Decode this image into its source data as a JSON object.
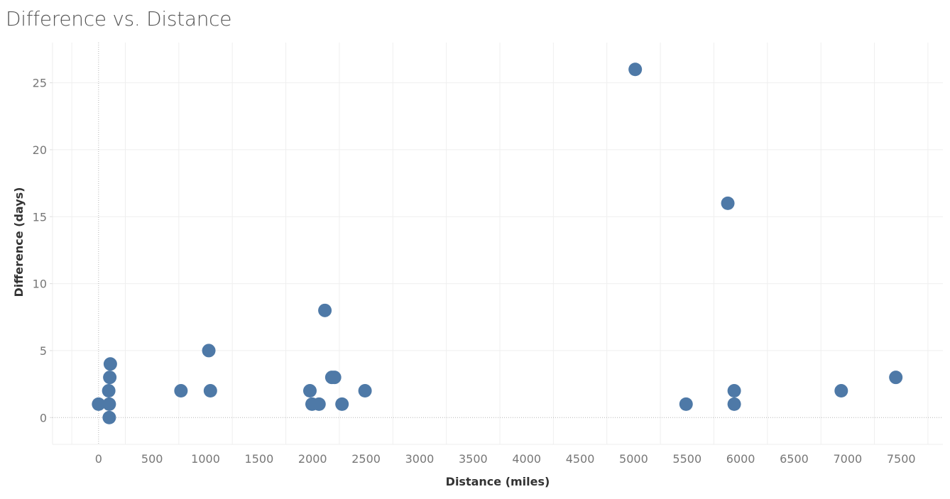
{
  "chart_data": {
    "type": "scatter",
    "title": "Difference vs. Distance",
    "xlabel": "Distance (miles)",
    "ylabel": "Difference (days)",
    "xlim": [
      -430,
      7890
    ],
    "ylim": [
      -2,
      28
    ],
    "xticks": [
      0,
      500,
      1000,
      1500,
      2000,
      2500,
      3000,
      3500,
      4000,
      4500,
      5000,
      5500,
      6000,
      6500,
      7000,
      7500
    ],
    "yticks": [
      0,
      5,
      10,
      15,
      20,
      25
    ],
    "grid": true,
    "legend": "none",
    "marker_color": "#4e79a7",
    "points": [
      {
        "x": 0,
        "y": 1
      },
      {
        "x": 100,
        "y": 0
      },
      {
        "x": 100,
        "y": 1
      },
      {
        "x": 95,
        "y": 2
      },
      {
        "x": 105,
        "y": 3
      },
      {
        "x": 110,
        "y": 4
      },
      {
        "x": 770,
        "y": 2
      },
      {
        "x": 1030,
        "y": 5
      },
      {
        "x": 1045,
        "y": 2
      },
      {
        "x": 1975,
        "y": 2
      },
      {
        "x": 1995,
        "y": 1
      },
      {
        "x": 2060,
        "y": 1
      },
      {
        "x": 2115,
        "y": 8
      },
      {
        "x": 2180,
        "y": 3
      },
      {
        "x": 2205,
        "y": 3
      },
      {
        "x": 2275,
        "y": 1
      },
      {
        "x": 2490,
        "y": 2
      },
      {
        "x": 5015,
        "y": 26
      },
      {
        "x": 5490,
        "y": 1
      },
      {
        "x": 5880,
        "y": 16
      },
      {
        "x": 5940,
        "y": 2
      },
      {
        "x": 5940,
        "y": 1
      },
      {
        "x": 6940,
        "y": 2
      },
      {
        "x": 7450,
        "y": 3
      }
    ]
  }
}
